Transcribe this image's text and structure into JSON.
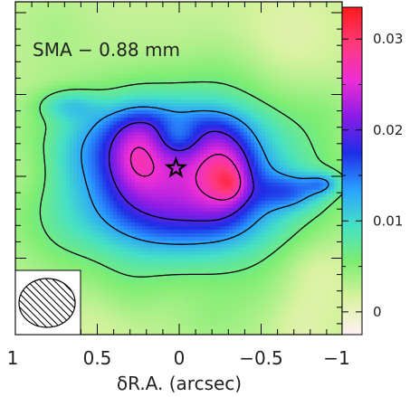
{
  "chart_data": {
    "type": "heatmap",
    "title": "SMA − 0.88 mm",
    "xlabel": "δR.A. (arcsec)",
    "ylabel": "",
    "xlim": [
      1,
      -1
    ],
    "x_ticks": [
      {
        "value": 1,
        "label": "1"
      },
      {
        "value": 0.5,
        "label": "0.5"
      },
      {
        "value": 0,
        "label": "0"
      },
      {
        "value": -0.5,
        "label": "−0.5"
      },
      {
        "value": -1,
        "label": "−1"
      }
    ],
    "colorbar": {
      "range": [
        -0.0025,
        0.0335
      ],
      "ticks": [
        {
          "value": 0,
          "label": "0"
        },
        {
          "value": 0.01,
          "label": "0.01"
        },
        {
          "value": 0.02,
          "label": "0.02"
        },
        {
          "value": 0.03,
          "label": "0.03"
        }
      ],
      "colors": [
        "#fff0f5",
        "#d9f2a0",
        "#7ded72",
        "#45e0c5",
        "#2aa0ff",
        "#1e2de6",
        "#8a1ce6",
        "#ee2ed6",
        "#ff3a7a",
        "#ff1a1a"
      ]
    },
    "contour_levels": [
      0.0065,
      0.013,
      0.0195,
      0.026
    ],
    "star_marker": {
      "x": 0.02,
      "y": 0.05
    },
    "beam": {
      "major": 0.44,
      "minor": 0.39,
      "angle_deg": 0,
      "hatched": true
    },
    "grid": false
  }
}
